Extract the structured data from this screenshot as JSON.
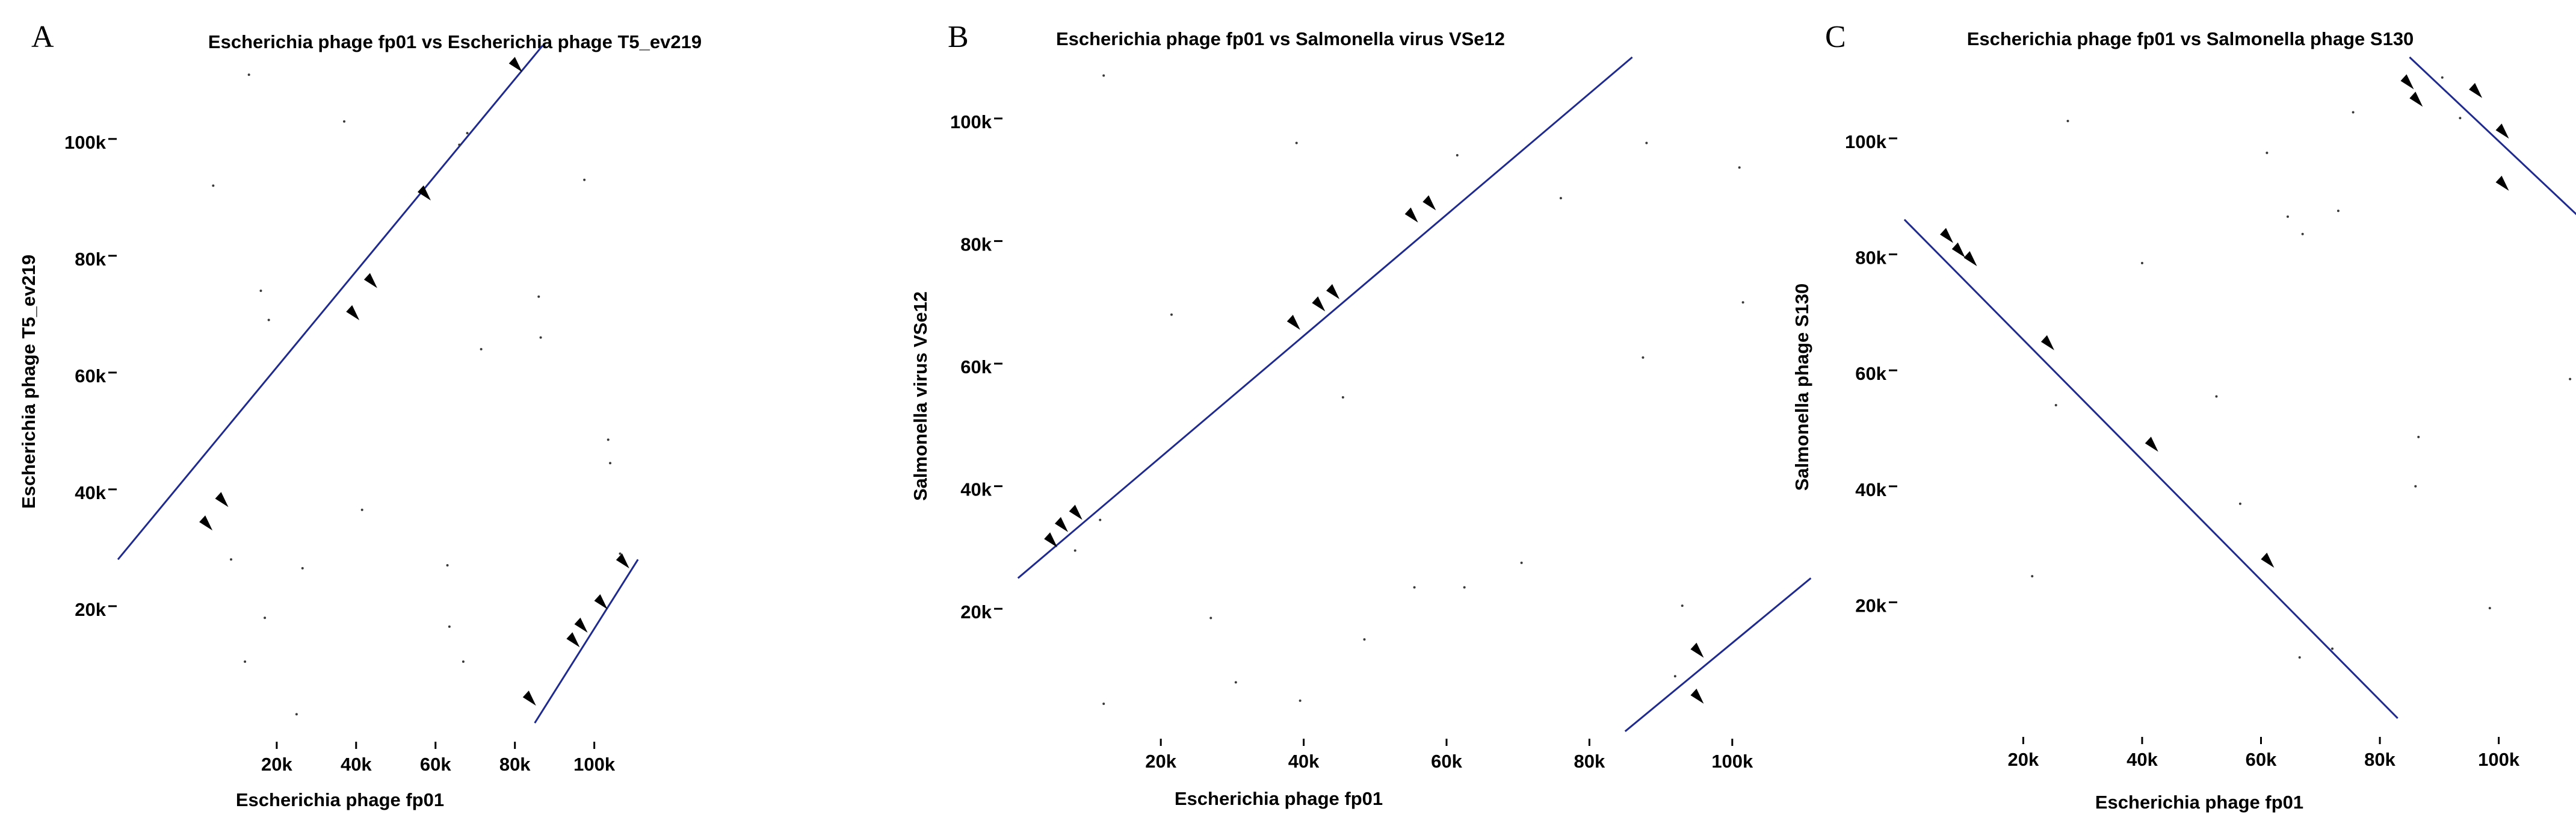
{
  "colors": {
    "line": "#1f2a8f",
    "arrow": "#000000",
    "axis": "#000000",
    "dots": "#3a3a3a"
  },
  "chart_data": [
    {
      "type": "scatter",
      "panel": "A",
      "title": "Escherichia phage fp01 vs Escherichia phage T5_ev219",
      "xlabel": "Escherichia phage fp01",
      "ylabel": "Escherichia phage T5_ev219",
      "xlim": [
        -20000,
        114000
      ],
      "ylim": [
        -3000,
        114000
      ],
      "xticks": [
        {
          "value": 20000,
          "label": "20k"
        },
        {
          "value": 40000,
          "label": "40k"
        },
        {
          "value": 60000,
          "label": "60k"
        },
        {
          "value": 80000,
          "label": "80k"
        },
        {
          "value": 100000,
          "label": "100k"
        }
      ],
      "yticks": [
        {
          "value": 20000,
          "label": "20k"
        },
        {
          "value": 40000,
          "label": "40k"
        },
        {
          "value": 60000,
          "label": "60k"
        },
        {
          "value": 80000,
          "label": "80k"
        },
        {
          "value": 100000,
          "label": "100k"
        }
      ],
      "segments": [
        {
          "x": [
            -20000,
            87000
          ],
          "y": [
            28000,
            116000
          ]
        },
        {
          "x": [
            85000,
            111000
          ],
          "y": [
            0,
            28000
          ]
        }
      ],
      "arrows": [
        {
          "x": 2000,
          "y": 34000
        },
        {
          "x": 6000,
          "y": 38000
        },
        {
          "x": 39000,
          "y": 70000
        },
        {
          "x": 43500,
          "y": 75500
        },
        {
          "x": 57000,
          "y": 90500
        },
        {
          "x": 80000,
          "y": 112500
        },
        {
          "x": 83500,
          "y": 4000
        },
        {
          "x": 94500,
          "y": 14000
        },
        {
          "x": 96500,
          "y": 16500
        },
        {
          "x": 101500,
          "y": 20500
        },
        {
          "x": 107000,
          "y": 27500
        }
      ],
      "noise": [
        {
          "x": 13000,
          "y": 111000
        },
        {
          "x": 4000,
          "y": 92000
        },
        {
          "x": 18000,
          "y": 69000
        },
        {
          "x": 16000,
          "y": 74000
        },
        {
          "x": 17000,
          "y": 18000
        },
        {
          "x": 12000,
          "y": 10500
        },
        {
          "x": 25000,
          "y": 1500
        },
        {
          "x": 26500,
          "y": 26500
        },
        {
          "x": 41500,
          "y": 36500
        },
        {
          "x": 37000,
          "y": 103000
        },
        {
          "x": 63000,
          "y": 27000
        },
        {
          "x": 63500,
          "y": 16500
        },
        {
          "x": 67000,
          "y": 10500
        },
        {
          "x": 66000,
          "y": 99000
        },
        {
          "x": 68000,
          "y": 101000
        },
        {
          "x": 71500,
          "y": 64000
        },
        {
          "x": 86000,
          "y": 73000
        },
        {
          "x": 86500,
          "y": 66000
        },
        {
          "x": 97500,
          "y": 93000
        },
        {
          "x": 103500,
          "y": 48500
        },
        {
          "x": 104000,
          "y": 44500
        },
        {
          "x": 106500,
          "y": 29000
        },
        {
          "x": 8500,
          "y": 28000
        }
      ]
    },
    {
      "type": "scatter",
      "panel": "B",
      "title": "Escherichia phage fp01 vs Salmonella virus VSe12",
      "xlabel": "Escherichia phage fp01",
      "ylabel": "Salmonella virus VSe12",
      "xlim": [
        -2000,
        114000
      ],
      "ylim": [
        -1000,
        110000
      ],
      "xticks": [
        {
          "value": 20000,
          "label": "20k"
        },
        {
          "value": 40000,
          "label": "40k"
        },
        {
          "value": 60000,
          "label": "60k"
        },
        {
          "value": 80000,
          "label": "80k"
        },
        {
          "value": 100000,
          "label": "100k"
        }
      ],
      "yticks": [
        {
          "value": 20000,
          "label": "20k"
        },
        {
          "value": 40000,
          "label": "40k"
        },
        {
          "value": 60000,
          "label": "60k"
        },
        {
          "value": 80000,
          "label": "80k"
        },
        {
          "value": 100000,
          "label": "100k"
        }
      ],
      "segments": [
        {
          "x": [
            0,
            86000
          ],
          "y": [
            25000,
            110000
          ]
        },
        {
          "x": [
            85000,
            111000
          ],
          "y": [
            0,
            25000
          ]
        }
      ],
      "arrows": [
        {
          "x": 4500,
          "y": 31000
        },
        {
          "x": 6000,
          "y": 33500
        },
        {
          "x": 8000,
          "y": 35500
        },
        {
          "x": 38500,
          "y": 66500
        },
        {
          "x": 42000,
          "y": 69500
        },
        {
          "x": 44000,
          "y": 71500
        },
        {
          "x": 55000,
          "y": 84000
        },
        {
          "x": 57500,
          "y": 86000
        },
        {
          "x": 95000,
          "y": 13000
        },
        {
          "x": 95000,
          "y": 5500
        }
      ],
      "noise": [
        {
          "x": 12000,
          "y": 107000
        },
        {
          "x": 39000,
          "y": 96000
        },
        {
          "x": 61500,
          "y": 94000
        },
        {
          "x": 76000,
          "y": 87000
        },
        {
          "x": 88000,
          "y": 96000
        },
        {
          "x": 101500,
          "y": 70000
        },
        {
          "x": 101000,
          "y": 92000
        },
        {
          "x": 87500,
          "y": 61000
        },
        {
          "x": 21500,
          "y": 68000
        },
        {
          "x": 45500,
          "y": 54500
        },
        {
          "x": 8000,
          "y": 29500
        },
        {
          "x": 11500,
          "y": 34500
        },
        {
          "x": 27000,
          "y": 18500
        },
        {
          "x": 30500,
          "y": 8000
        },
        {
          "x": 48500,
          "y": 15000
        },
        {
          "x": 55500,
          "y": 23500
        },
        {
          "x": 62500,
          "y": 23500
        },
        {
          "x": 70500,
          "y": 27500
        },
        {
          "x": 12000,
          "y": 4500
        },
        {
          "x": 39500,
          "y": 5000
        },
        {
          "x": 93000,
          "y": 20500
        },
        {
          "x": 92000,
          "y": 9000
        }
      ]
    },
    {
      "type": "scatter",
      "panel": "C",
      "title": "Escherichia phage fp01 vs Salmonella phage S130",
      "xlabel": "Escherichia phage fp01",
      "ylabel": "Salmonella phage S130",
      "xlim": [
        -1000,
        113000
      ],
      "ylim": [
        -3000,
        114000
      ],
      "xticks": [
        {
          "value": 20000,
          "label": "20k"
        },
        {
          "value": 40000,
          "label": "40k"
        },
        {
          "value": 60000,
          "label": "60k"
        },
        {
          "value": 80000,
          "label": "80k"
        },
        {
          "value": 100000,
          "label": "100k"
        }
      ],
      "yticks": [
        {
          "value": 20000,
          "label": "20k"
        },
        {
          "value": 40000,
          "label": "40k"
        },
        {
          "value": 60000,
          "label": "60k"
        },
        {
          "value": 80000,
          "label": "80k"
        },
        {
          "value": 100000,
          "label": "100k"
        }
      ],
      "segments": [
        {
          "x": [
            0,
            83000
          ],
          "y": [
            86000,
            0
          ]
        },
        {
          "x": [
            85000,
            114000
          ],
          "y": [
            114000,
            86000
          ]
        }
      ],
      "arrows": [
        {
          "x": 7000,
          "y": 83000
        },
        {
          "x": 9000,
          "y": 80500
        },
        {
          "x": 11000,
          "y": 79000
        },
        {
          "x": 24000,
          "y": 64500
        },
        {
          "x": 41500,
          "y": 47000
        },
        {
          "x": 61000,
          "y": 27000
        },
        {
          "x": 84500,
          "y": 109500
        },
        {
          "x": 86000,
          "y": 106500
        },
        {
          "x": 96000,
          "y": 108000
        },
        {
          "x": 100500,
          "y": 101000
        },
        {
          "x": 100500,
          "y": 92000
        }
      ],
      "noise": [
        {
          "x": 27500,
          "y": 103000
        },
        {
          "x": 40000,
          "y": 78500
        },
        {
          "x": 52500,
          "y": 55500
        },
        {
          "x": 64500,
          "y": 86500
        },
        {
          "x": 67000,
          "y": 83500
        },
        {
          "x": 73000,
          "y": 87500
        },
        {
          "x": 75500,
          "y": 104500
        },
        {
          "x": 61000,
          "y": 97500
        },
        {
          "x": 86500,
          "y": 48500
        },
        {
          "x": 86000,
          "y": 40000
        },
        {
          "x": 112000,
          "y": 58500
        },
        {
          "x": 98500,
          "y": 19000
        },
        {
          "x": 66500,
          "y": 10500
        },
        {
          "x": 21500,
          "y": 24500
        },
        {
          "x": 25500,
          "y": 54000
        },
        {
          "x": 56500,
          "y": 37000
        },
        {
          "x": 72000,
          "y": 12000
        },
        {
          "x": 90500,
          "y": 110500
        },
        {
          "x": 93500,
          "y": 103500
        }
      ]
    }
  ]
}
